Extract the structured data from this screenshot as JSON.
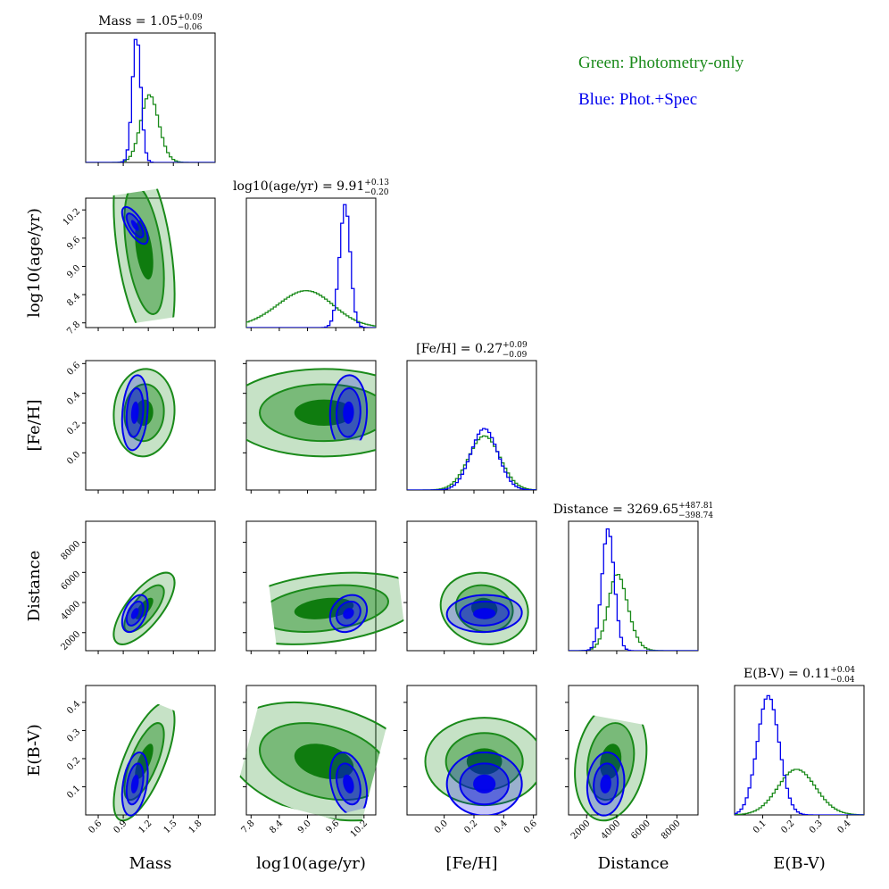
{
  "colors": {
    "green": "#1a8a1a",
    "blue": "#0000ee",
    "axis": "#000000"
  },
  "legend": {
    "green": "Green: Photometry-only",
    "blue": "Blue: Phot.+Spec"
  },
  "chart_data": {
    "type": "corner",
    "params": [
      {
        "label": "Mass",
        "title": "Mass = 1.05",
        "median": 1.05,
        "plus": "+0.09",
        "minus": "−0.06",
        "range": [
          0.45,
          2.0
        ],
        "ticks": [
          0.6,
          0.9,
          1.2,
          1.5,
          1.8
        ],
        "tick_labels": [
          "0.6",
          "0.9",
          "1.2",
          "1.5",
          "1.8"
        ]
      },
      {
        "label": "log10(age/yr)",
        "title": "log10(age/yr) = 9.91",
        "median": 9.91,
        "plus": "+0.13",
        "minus": "−0.20",
        "range": [
          7.7,
          10.45
        ],
        "ticks": [
          7.8,
          8.4,
          9.0,
          9.6,
          10.2
        ],
        "tick_labels": [
          "7.8",
          "8.4",
          "9.0",
          "9.6",
          "10.2"
        ]
      },
      {
        "label": "[Fe/H]",
        "title": "[Fe/H] = 0.27",
        "median": 0.27,
        "plus": "+0.09",
        "minus": "−0.09",
        "range": [
          -0.25,
          0.62
        ],
        "ticks": [
          0.0,
          0.2,
          0.4,
          0.6
        ],
        "tick_labels": [
          "0.0",
          "0.2",
          "0.4",
          "0.6"
        ]
      },
      {
        "label": "Distance",
        "title": "Distance = 3269.65",
        "median": 3269.65,
        "plus": "+487.81",
        "minus": "−398.74",
        "range": [
          800,
          9400
        ],
        "ticks": [
          2000,
          4000,
          6000,
          8000
        ],
        "tick_labels": [
          "2000",
          "4000",
          "6000",
          "8000"
        ]
      },
      {
        "label": "E(B-V)",
        "title": "E(B-V) = 0.11",
        "median": 0.11,
        "plus": "+0.04",
        "minus": "−0.04",
        "range": [
          0.0,
          0.46
        ],
        "ticks": [
          0.1,
          0.2,
          0.3,
          0.4
        ],
        "tick_labels": [
          "0.1",
          "0.2",
          "0.3",
          "0.4"
        ]
      }
    ],
    "series": [
      {
        "name": "Photometry-only",
        "color": "#1a8a1a",
        "marginals": [
          {
            "mean": 1.15,
            "sd": 0.13,
            "skew": 0.9
          },
          {
            "mean": 9.35,
            "sd": 0.75,
            "skew": -1.0
          },
          {
            "mean": 0.27,
            "sd": 0.105,
            "skew": 0
          },
          {
            "mean": 3600,
            "sd": 850,
            "skew": 1.2
          },
          {
            "mean": 0.19,
            "sd": 0.075,
            "skew": 0.6
          }
        ],
        "peaks": [
          0.55,
          0.3,
          0.44,
          0.62,
          0.37
        ]
      },
      {
        "name": "Phot.+Spec",
        "color": "#0000ee",
        "marginals": [
          {
            "mean": 1.04,
            "sd": 0.055,
            "skew": 0.5
          },
          {
            "mean": 9.87,
            "sd": 0.14,
            "skew": -1.0
          },
          {
            "mean": 0.27,
            "sd": 0.09,
            "skew": 0
          },
          {
            "mean": 3270,
            "sd": 440,
            "skew": 0.5
          },
          {
            "mean": 0.11,
            "sd": 0.04,
            "skew": 0.3
          }
        ],
        "peaks": [
          1.0,
          1.0,
          0.5,
          0.99,
          0.97
        ]
      }
    ],
    "correlations": {
      "1-0": {
        "green": -0.45,
        "blue": -0.7
      },
      "2-0": {
        "green": 0.05,
        "blue": 0.2
      },
      "2-1": {
        "green": 0.0,
        "blue": 0.05
      },
      "3-0": {
        "green": 0.72,
        "blue": 0.45
      },
      "3-1": {
        "green": 0.3,
        "blue": 0.2
      },
      "3-2": {
        "green": -0.1,
        "blue": 0.05
      },
      "4-0": {
        "green": 0.7,
        "blue": 0.35
      },
      "4-1": {
        "green": -0.3,
        "blue": -0.3
      },
      "4-2": {
        "green": 0.0,
        "blue": 0.0
      },
      "4-3": {
        "green": 0.2,
        "blue": 0.1
      }
    },
    "contour_levels_sigma": [
      0.6,
      1.3,
      2.0
    ]
  }
}
